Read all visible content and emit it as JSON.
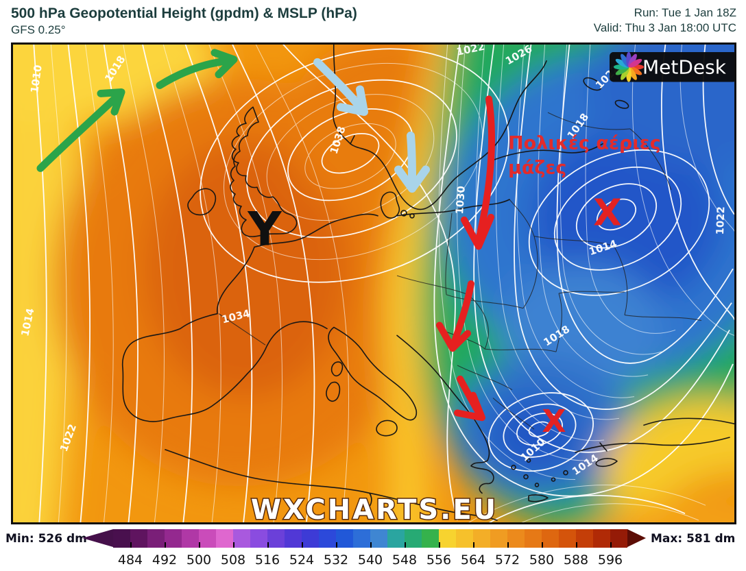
{
  "header": {
    "title": "500 hPa Geopotential Height (gpdm) & MSLP (hPa)",
    "subtitle": "GFS 0.25°",
    "run": "Run: Tue 1 Jan 18Z",
    "valid": "Valid: Thu 3 Jan 18:00 UTC",
    "text_color": "#1c3d3d"
  },
  "map": {
    "watermark": "WXCHARTS.EU",
    "logo_text": "MetDesk",
    "annotations": {
      "y_marker": "Y",
      "x_marker_1": "X",
      "x_marker_2": "X",
      "polar_text_line1": "Πολικές αέριες",
      "polar_text_line2": "μάζες",
      "annotation_red": "#e32222",
      "arrow_red": "#e62020",
      "arrow_green": "#2ba44a",
      "arrow_blue": "#a9d4ea"
    },
    "isobar_labels": [
      "1010",
      "1018",
      "1038",
      "1030",
      "1022",
      "1026",
      "1022",
      "1018",
      "1014",
      "1022",
      "1018",
      "1010",
      "1014",
      "1014",
      "1022",
      "1034"
    ]
  },
  "colorbar": {
    "min_label": "Min: 526 dm",
    "max_label": "Max: 581 dm",
    "ticks": [
      "484",
      "492",
      "500",
      "508",
      "516",
      "524",
      "532",
      "540",
      "548",
      "556",
      "564",
      "572",
      "580",
      "588",
      "596"
    ],
    "segment_colors": [
      "#49104e",
      "#5f145f",
      "#7a1f78",
      "#94298f",
      "#b038a6",
      "#ca4cba",
      "#df67cf",
      "#a959de",
      "#8a4ce0",
      "#6b40d9",
      "#5138d6",
      "#3d3bd6",
      "#2c49da",
      "#2158d8",
      "#2d6ed8",
      "#3f86d2",
      "#2aa5a0",
      "#27aa74",
      "#35b24c",
      "#f7d32f",
      "#f6c12b",
      "#f3ae27",
      "#f09c22",
      "#ec8a1c",
      "#e67916",
      "#de6710",
      "#d4540b",
      "#c43e08",
      "#b02a06",
      "#951b07"
    ],
    "left_arrow_color": "#45104a",
    "right_arrow_color": "#5c0d05"
  }
}
